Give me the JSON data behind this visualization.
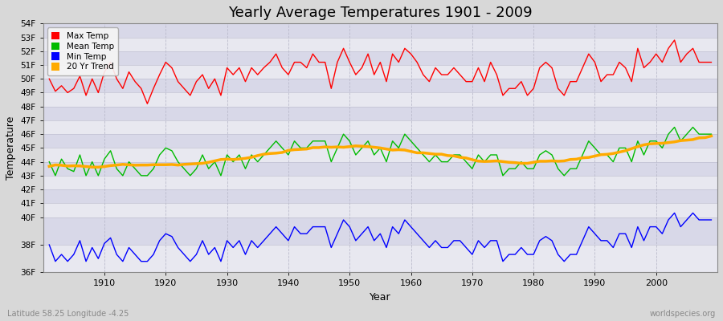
{
  "title": "Yearly Average Temperatures 1901 - 2009",
  "xlabel": "Year",
  "ylabel": "Temperature",
  "footnote_left": "Latitude 58.25 Longitude -4.25",
  "footnote_right": "worldspecies.org",
  "years": [
    1901,
    1902,
    1903,
    1904,
    1905,
    1906,
    1907,
    1908,
    1909,
    1910,
    1911,
    1912,
    1913,
    1914,
    1915,
    1916,
    1917,
    1918,
    1919,
    1920,
    1921,
    1922,
    1923,
    1924,
    1925,
    1926,
    1927,
    1928,
    1929,
    1930,
    1931,
    1932,
    1933,
    1934,
    1935,
    1936,
    1937,
    1938,
    1939,
    1940,
    1941,
    1942,
    1943,
    1944,
    1945,
    1946,
    1947,
    1948,
    1949,
    1950,
    1951,
    1952,
    1953,
    1954,
    1955,
    1956,
    1957,
    1958,
    1959,
    1960,
    1961,
    1962,
    1963,
    1964,
    1965,
    1966,
    1967,
    1968,
    1969,
    1970,
    1971,
    1972,
    1973,
    1974,
    1975,
    1976,
    1977,
    1978,
    1979,
    1980,
    1981,
    1982,
    1983,
    1984,
    1985,
    1986,
    1987,
    1988,
    1989,
    1990,
    1991,
    1992,
    1993,
    1994,
    1995,
    1996,
    1997,
    1998,
    1999,
    2000,
    2001,
    2002,
    2003,
    2004,
    2005,
    2006,
    2007,
    2008,
    2009
  ],
  "max_temp": [
    50.0,
    49.1,
    49.5,
    49.0,
    49.3,
    50.2,
    48.8,
    50.0,
    49.0,
    50.5,
    51.2,
    50.0,
    49.3,
    50.5,
    49.8,
    49.3,
    48.2,
    49.3,
    50.3,
    51.2,
    50.8,
    49.8,
    49.3,
    48.8,
    49.8,
    50.3,
    49.3,
    50.0,
    48.8,
    50.8,
    50.3,
    50.8,
    49.8,
    50.8,
    50.3,
    50.8,
    51.2,
    51.8,
    50.8,
    50.3,
    51.2,
    51.2,
    50.8,
    51.8,
    51.2,
    51.2,
    49.3,
    51.2,
    52.2,
    51.2,
    50.3,
    50.8,
    51.8,
    50.3,
    51.2,
    49.8,
    51.8,
    51.2,
    52.2,
    51.8,
    51.2,
    50.3,
    49.8,
    50.8,
    50.3,
    50.3,
    50.8,
    50.3,
    49.8,
    49.8,
    50.8,
    49.8,
    51.2,
    50.3,
    48.8,
    49.3,
    49.3,
    49.8,
    48.8,
    49.3,
    50.8,
    51.2,
    50.8,
    49.3,
    48.8,
    49.8,
    49.8,
    50.8,
    51.8,
    51.2,
    49.8,
    50.3,
    50.3,
    51.2,
    50.8,
    49.8,
    52.2,
    50.8,
    51.2,
    51.8,
    51.2,
    52.2,
    52.8,
    51.2,
    51.8,
    52.2,
    51.2,
    51.2,
    51.2
  ],
  "mean_temp": [
    44.0,
    43.0,
    44.2,
    43.5,
    43.3,
    44.5,
    43.0,
    44.0,
    43.0,
    44.2,
    44.8,
    43.5,
    43.0,
    44.0,
    43.5,
    43.0,
    43.0,
    43.5,
    44.5,
    45.0,
    44.8,
    44.0,
    43.5,
    43.0,
    43.5,
    44.5,
    43.5,
    44.0,
    43.0,
    44.5,
    44.0,
    44.5,
    43.5,
    44.5,
    44.0,
    44.5,
    45.0,
    45.5,
    45.0,
    44.5,
    45.5,
    45.0,
    45.0,
    45.5,
    45.5,
    45.5,
    44.0,
    45.0,
    46.0,
    45.5,
    44.5,
    45.0,
    45.5,
    44.5,
    45.0,
    44.0,
    45.5,
    45.0,
    46.0,
    45.5,
    45.0,
    44.5,
    44.0,
    44.5,
    44.0,
    44.0,
    44.5,
    44.5,
    44.0,
    43.5,
    44.5,
    44.0,
    44.5,
    44.5,
    43.0,
    43.5,
    43.5,
    44.0,
    43.5,
    43.5,
    44.5,
    44.8,
    44.5,
    43.5,
    43.0,
    43.5,
    43.5,
    44.5,
    45.5,
    45.0,
    44.5,
    44.5,
    44.0,
    45.0,
    45.0,
    44.0,
    45.5,
    44.5,
    45.5,
    45.5,
    45.0,
    46.0,
    46.5,
    45.5,
    46.0,
    46.5,
    46.0,
    46.0,
    46.0
  ],
  "min_temp": [
    38.0,
    36.8,
    37.3,
    36.8,
    37.3,
    38.3,
    36.8,
    37.8,
    37.0,
    38.1,
    38.5,
    37.3,
    36.8,
    37.8,
    37.3,
    36.8,
    36.8,
    37.3,
    38.3,
    38.8,
    38.6,
    37.8,
    37.3,
    36.8,
    37.3,
    38.3,
    37.3,
    37.8,
    36.8,
    38.3,
    37.8,
    38.3,
    37.3,
    38.3,
    37.8,
    38.3,
    38.8,
    39.3,
    38.8,
    38.3,
    39.3,
    38.8,
    38.8,
    39.3,
    39.3,
    39.3,
    37.8,
    38.8,
    39.8,
    39.3,
    38.3,
    38.8,
    39.3,
    38.3,
    38.8,
    37.8,
    39.3,
    38.8,
    39.8,
    39.3,
    38.8,
    38.3,
    37.8,
    38.3,
    37.8,
    37.8,
    38.3,
    38.3,
    37.8,
    37.3,
    38.3,
    37.8,
    38.3,
    38.3,
    36.8,
    37.3,
    37.3,
    37.8,
    37.3,
    37.3,
    38.3,
    38.6,
    38.3,
    37.3,
    36.8,
    37.3,
    37.3,
    38.3,
    39.3,
    38.8,
    38.3,
    38.3,
    37.8,
    38.8,
    38.8,
    37.8,
    39.3,
    38.3,
    39.3,
    39.3,
    38.8,
    39.8,
    40.3,
    39.3,
    39.8,
    40.3,
    39.8,
    39.8,
    39.8
  ],
  "bg_color": "#d8d8d8",
  "plot_bg_color": "#ffffff",
  "band_color_1": "#e8e8f0",
  "band_color_2": "#d8d8e8",
  "grid_color": "#bbbbcc",
  "max_color": "#ff0000",
  "mean_color": "#00bb00",
  "min_color": "#0000ff",
  "trend_color": "#ffaa00",
  "ylim_min": 36,
  "ylim_max": 54,
  "yticks": [
    36,
    38,
    40,
    41,
    42,
    43,
    44,
    45,
    46,
    47,
    48,
    49,
    50,
    51,
    52,
    53,
    54
  ],
  "ytick_labels": [
    "36F",
    "38F",
    "40F",
    "41F",
    "42F",
    "43F",
    "44F",
    "45F",
    "46F",
    "47F",
    "48F",
    "49F",
    "50F",
    "51F",
    "52F",
    "53F",
    "54F"
  ],
  "xticks": [
    1910,
    1920,
    1930,
    1940,
    1950,
    1960,
    1970,
    1980,
    1990,
    2000
  ],
  "xlim_min": 1900,
  "xlim_max": 2010
}
